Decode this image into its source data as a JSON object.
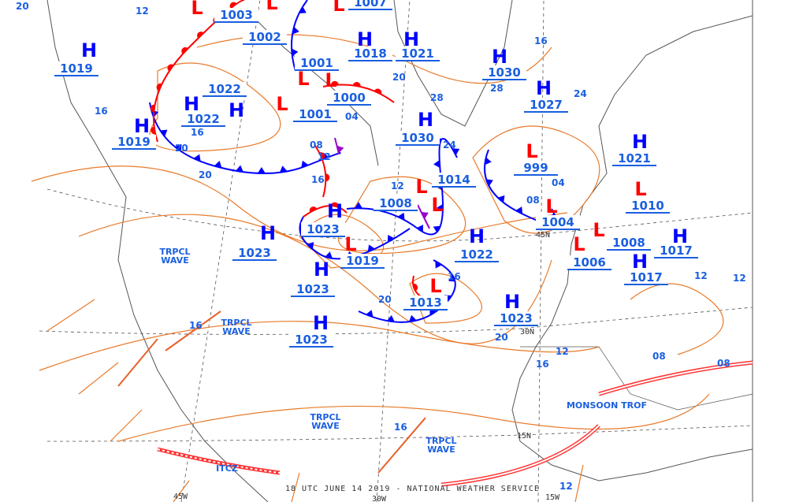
{
  "map": {
    "footer": "18 UTC JUNE 14 2019 - NATIONAL WEATHER SERVICE",
    "colors": {
      "high": "#0000ff",
      "low": "#ff0000",
      "isobar": "#e87a2a",
      "cold_front": "#0000ff",
      "warm_front": "#ff0000",
      "occluded": "#9900cc",
      "label": "#1a5fe0",
      "coast": "#555555",
      "trough": "#ff3333"
    },
    "pressure_centers": [
      {
        "type": "H",
        "value": "1019"
      },
      {
        "type": "L",
        "value": "1003"
      },
      {
        "type": "L",
        "value": "1002"
      },
      {
        "type": "H",
        "value": "1018"
      },
      {
        "type": "H",
        "value": "1021"
      },
      {
        "type": "H",
        "value": "1030"
      },
      {
        "type": "L",
        "value": "1001"
      },
      {
        "type": "L",
        "value": "1000"
      },
      {
        "type": "L",
        "value": "1001"
      },
      {
        "type": "H",
        "value": "1022"
      },
      {
        "type": "H",
        "value": "1022"
      },
      {
        "type": "H",
        "value": "1019"
      },
      {
        "type": "H",
        "value": "1030"
      },
      {
        "type": "H",
        "value": "1027"
      },
      {
        "type": "L",
        "value": "999"
      },
      {
        "type": "L",
        "value": "1014"
      },
      {
        "type": "L",
        "value": "1008"
      },
      {
        "type": "H",
        "value": "1023"
      },
      {
        "type": "L",
        "value": "1019"
      },
      {
        "type": "H",
        "value": "1023"
      },
      {
        "type": "H",
        "value": "1022"
      },
      {
        "type": "L",
        "value": "1004"
      },
      {
        "type": "L",
        "value": "1008"
      },
      {
        "type": "H",
        "value": "1017"
      },
      {
        "type": "L",
        "value": "1006"
      },
      {
        "type": "H",
        "value": "1017"
      },
      {
        "type": "H",
        "value": "1021"
      },
      {
        "type": "L",
        "value": "1010"
      },
      {
        "type": "H",
        "value": "1023"
      },
      {
        "type": "L",
        "value": "1013"
      },
      {
        "type": "H",
        "value": "1023"
      },
      {
        "type": "H",
        "value": "1023"
      },
      {
        "type": "L",
        "value": "1007"
      }
    ],
    "feature_labels": [
      "TRPCL WAVE",
      "TRPCL WAVE",
      "TRPCL WAVE",
      "TRPCL WAVE",
      "MONSOON TROF",
      "ITCZ"
    ],
    "isobar_labels": [
      "12",
      "16",
      "16",
      "20",
      "20",
      "12",
      "16",
      "08",
      "04",
      "28",
      "24",
      "20",
      "12",
      "16",
      "16",
      "20",
      "16",
      "12",
      "08",
      "08",
      "12",
      "16",
      "20",
      "24",
      "28",
      "12",
      "04",
      "08",
      "12",
      "16",
      "20"
    ],
    "grid_labels": [
      "45N",
      "30N",
      "15N",
      "45W",
      "30W",
      "15W"
    ]
  }
}
